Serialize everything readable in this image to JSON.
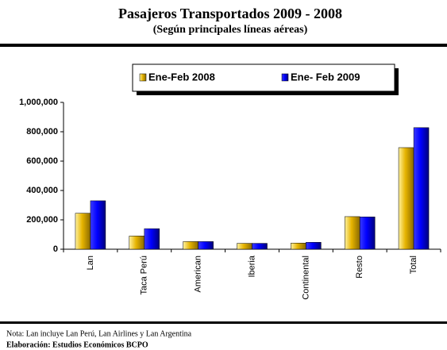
{
  "chart_data": {
    "type": "bar",
    "title": "Pasajeros Transportados 2009 - 2008",
    "subtitle": "(Según principales líneas aéreas)",
    "categories": [
      "Lan",
      "Taca Perú",
      "American",
      "Iberia",
      "Continental",
      "Resto",
      "Total"
    ],
    "series": [
      {
        "name": "Ene-Feb 2008",
        "color": "#e6b400",
        "values": [
          245000,
          90000,
          52000,
          40000,
          42000,
          222000,
          692000
        ]
      },
      {
        "name": "Ene- Feb 2009",
        "color": "#0000ff",
        "values": [
          330000,
          140000,
          52000,
          40000,
          47000,
          220000,
          828000
        ]
      }
    ],
    "ylim": [
      0,
      1000000
    ],
    "yticks": [
      0,
      {
        "value": 200000,
        "label": "200,000"
      },
      {
        "value": 400000,
        "label": "400,000"
      },
      {
        "value": 600000,
        "label": "600,000"
      },
      {
        "value": 800000,
        "label": "800,000"
      },
      {
        "value": 1000000,
        "label": "1,000,000"
      }
    ],
    "grid": false,
    "legend": "top",
    "notes": [
      "Nota: Lan incluye Lan Perú, Lan Airlines y Lan Argentina",
      "Elaboración: Estudios Económicos BCPO"
    ]
  }
}
